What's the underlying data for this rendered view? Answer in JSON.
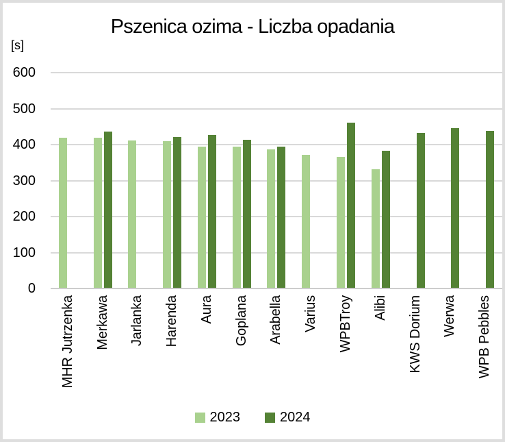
{
  "chart": {
    "title": "Pszenica ozima - Liczba opadania",
    "unit_label": "[s]",
    "theme": {
      "series_2023_color": "#a9d18e",
      "series_2024_color": "#548235",
      "gridline_color": "#d9d9d9",
      "frame_border_color": "#dedede",
      "text_color": "#000000",
      "background_color": "#ffffff"
    }
  },
  "chart_data": {
    "type": "bar",
    "title": "Pszenica ozima - Liczba opadania",
    "xlabel": "",
    "ylabel": "[s]",
    "ylim": [
      0,
      600
    ],
    "yticks": [
      0,
      100,
      200,
      300,
      400,
      500,
      600
    ],
    "grid": true,
    "legend_position": "bottom",
    "categories": [
      "MHR Jutrzenka",
      "Merkawa",
      "Jarlanka",
      "Harenda",
      "Aura",
      "Goplana",
      "Arabella",
      "Varius",
      "WPBTroy",
      "Alibi",
      "KWS Dorium",
      "Werwa",
      "WPB Pebbles"
    ],
    "series": [
      {
        "name": "2023",
        "color": "#a9d18e",
        "values": [
          417,
          417,
          410,
          408,
          393,
          392,
          385,
          370,
          364,
          330,
          null,
          null,
          null
        ]
      },
      {
        "name": "2024",
        "color": "#548235",
        "values": [
          null,
          435,
          null,
          420,
          425,
          412,
          392,
          null,
          459,
          381,
          431,
          443,
          437
        ]
      }
    ]
  }
}
